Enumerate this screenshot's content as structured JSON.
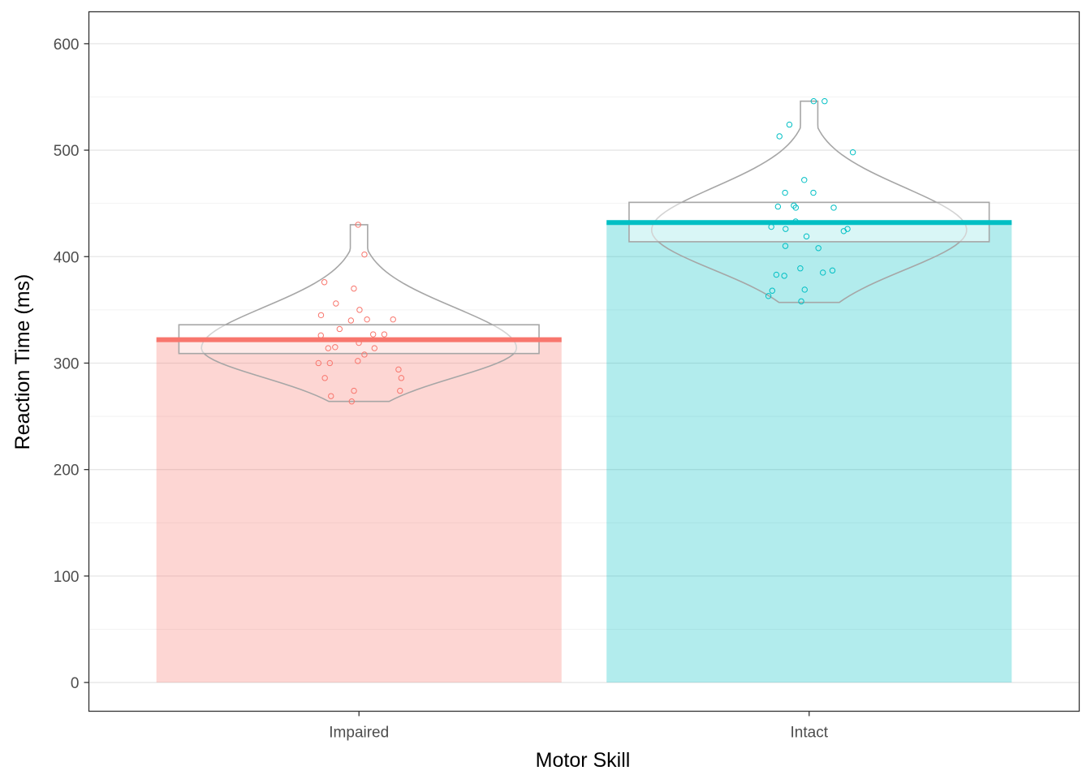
{
  "chart_data": {
    "type": "bar",
    "xlabel": "Motor Skill",
    "ylabel": "Reaction Time (ms)",
    "ylim": [
      -27,
      630
    ],
    "yticks": [
      0,
      100,
      200,
      300,
      400,
      500,
      600
    ],
    "grid": true,
    "categories": [
      "Impaired",
      "Intact"
    ],
    "values": [
      322,
      432
    ],
    "ci": [
      [
        309,
        336
      ],
      [
        414,
        451
      ]
    ],
    "colors": [
      "#F8766D",
      "#00BFC4"
    ],
    "violin": [
      {
        "min": 264,
        "max": 430,
        "widest_at": 314
      },
      {
        "min": 357,
        "max": 546,
        "widest_at": 425
      }
    ],
    "points": [
      [
        430,
        402,
        376,
        356,
        370,
        350,
        345,
        341,
        341,
        340,
        332,
        327,
        327,
        326,
        319,
        315,
        314,
        314,
        308,
        302,
        300,
        300,
        294,
        286,
        286,
        274,
        274,
        269,
        264
      ],
      [
        546,
        546,
        524,
        513,
        498,
        472,
        460,
        460,
        448,
        447,
        446,
        446,
        433,
        428,
        426,
        426,
        424,
        419,
        410,
        408,
        389,
        387,
        385,
        383,
        382,
        369,
        368,
        363,
        358
      ]
    ]
  }
}
